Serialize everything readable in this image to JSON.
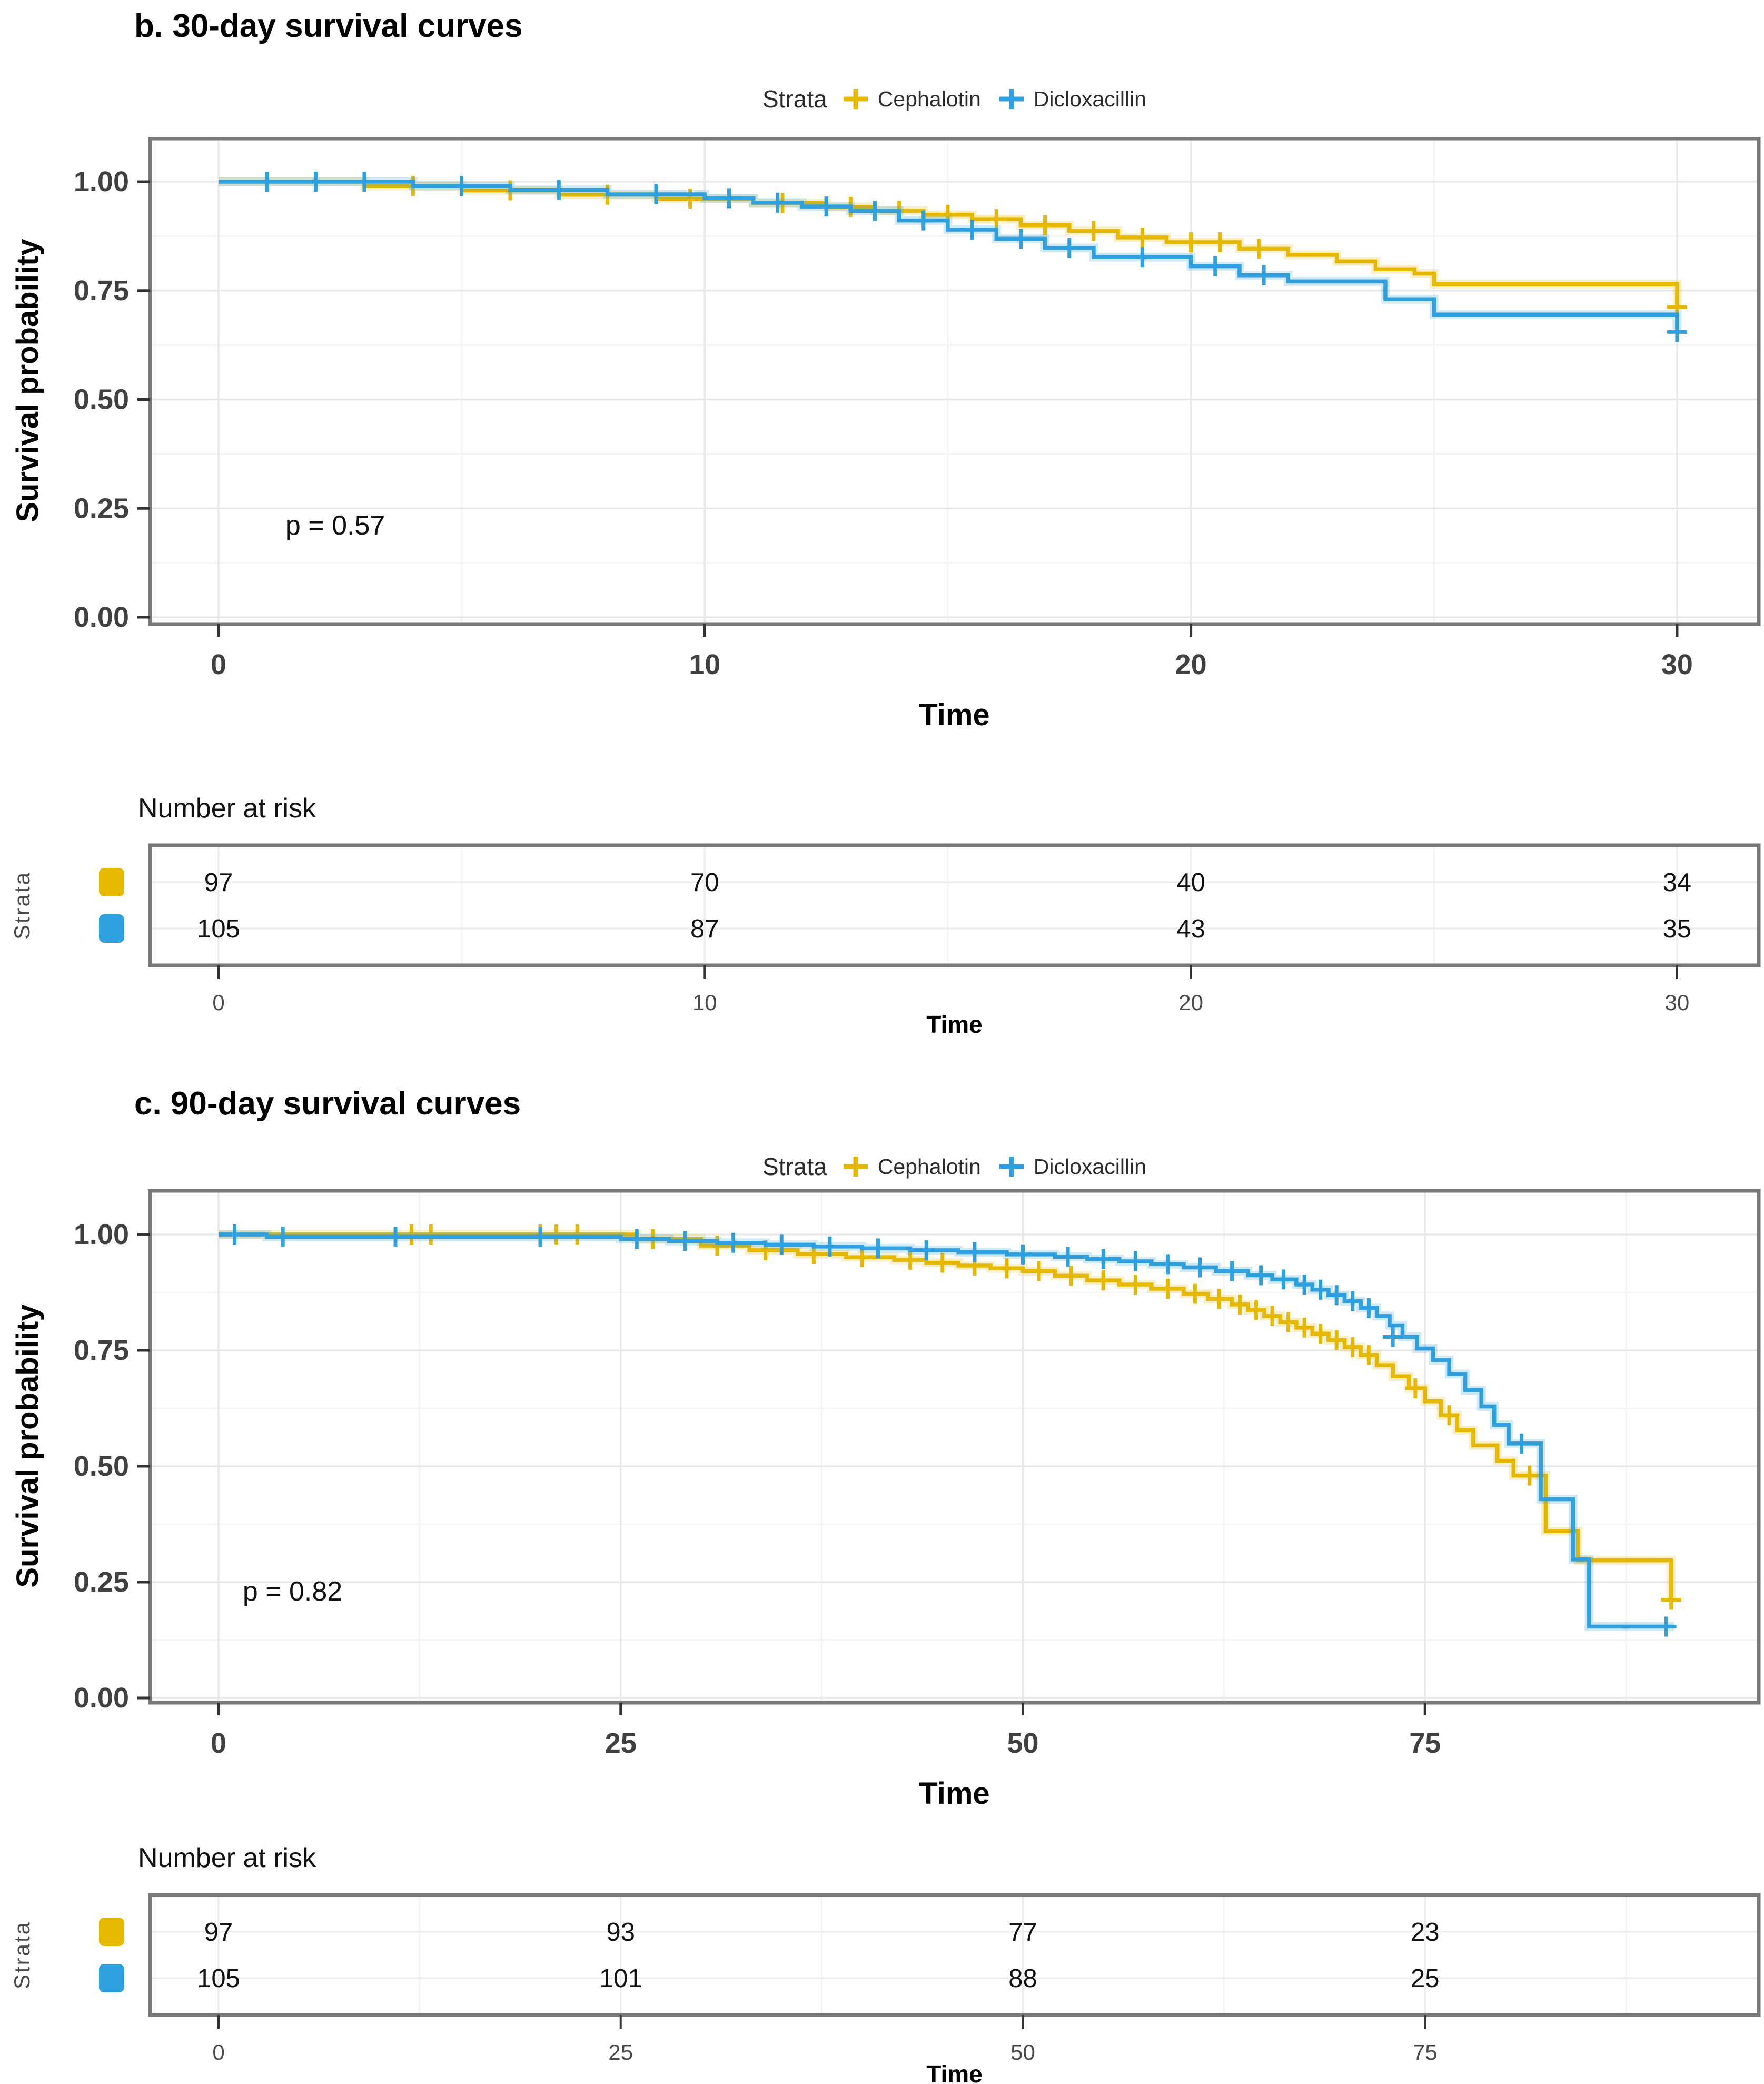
{
  "colors": {
    "cephalotin": "#E7B800",
    "dicloxacillin": "#2E9FDF",
    "panel_border": "#787878",
    "grid_major": "#e8e8e8",
    "grid_minor": "#f4f4f4",
    "tick": "#333333",
    "tick_label": "#404040",
    "risk_grid": "#ededed",
    "text": "#111111",
    "muted_label": "#4a4a4a"
  },
  "chart_data": [
    {
      "panel_id": "b",
      "type": "line",
      "step": "hv",
      "title": "b. 30-day survival curves",
      "xlabel": "Time",
      "ylabel": "Survival probability",
      "legend_title": "Strata",
      "legend_position": "top",
      "grid": true,
      "xlim": [
        0,
        31.7
      ],
      "ylim": [
        0,
        1
      ],
      "x_ticks": [
        0,
        10,
        20,
        30
      ],
      "x_minor_ticks": [
        5,
        15,
        25
      ],
      "y_ticks": [
        0,
        0.25,
        0.5,
        0.75,
        1
      ],
      "y_tick_labels": [
        "0.00",
        "0.25",
        "0.50",
        "0.75",
        "1.00"
      ],
      "y_minor_ticks": [
        0.125,
        0.375,
        0.625,
        0.875
      ],
      "p_value": {
        "text": "p = 0.57",
        "x": 2.4,
        "y": 0.19
      },
      "series": [
        {
          "name": "Cephalotin",
          "color_key": "cephalotin",
          "points": [
            [
              0,
              1
            ],
            [
              3,
              0.99
            ],
            [
              5,
              0.98
            ],
            [
              7,
              0.97
            ],
            [
              9,
              0.961
            ],
            [
              11,
              0.951
            ],
            [
              12.5,
              0.942
            ],
            [
              13.5,
              0.933
            ],
            [
              14.5,
              0.924
            ],
            [
              15.5,
              0.914
            ],
            [
              16.5,
              0.9
            ],
            [
              17.5,
              0.887
            ],
            [
              18.5,
              0.872
            ],
            [
              19.5,
              0.861
            ],
            [
              21,
              0.846
            ],
            [
              22,
              0.832
            ],
            [
              23,
              0.817
            ],
            [
              23.8,
              0.799
            ],
            [
              24.6,
              0.789
            ],
            [
              25,
              0.765
            ],
            [
              30,
              0.712
            ]
          ],
          "censor_marks": [
            [
              4,
              0.99
            ],
            [
              6,
              0.98
            ],
            [
              8,
              0.97
            ],
            [
              9.7,
              0.961
            ],
            [
              11.6,
              0.951
            ],
            [
              13,
              0.942
            ],
            [
              14,
              0.933
            ],
            [
              15,
              0.924
            ],
            [
              16,
              0.914
            ],
            [
              17,
              0.9
            ],
            [
              18,
              0.887
            ],
            [
              19,
              0.872
            ],
            [
              20,
              0.861
            ],
            [
              20.6,
              0.861
            ],
            [
              21.4,
              0.846
            ],
            [
              30,
              0.712
            ]
          ]
        },
        {
          "name": "Dicloxacillin",
          "color_key": "dicloxacillin",
          "points": [
            [
              0,
              1
            ],
            [
              4,
              0.99
            ],
            [
              6,
              0.981
            ],
            [
              8,
              0.971
            ],
            [
              10,
              0.962
            ],
            [
              11,
              0.952
            ],
            [
              12,
              0.943
            ],
            [
              13,
              0.933
            ],
            [
              14,
              0.911
            ],
            [
              15,
              0.89
            ],
            [
              16,
              0.869
            ],
            [
              17,
              0.848
            ],
            [
              18,
              0.827
            ],
            [
              20,
              0.806
            ],
            [
              21,
              0.785
            ],
            [
              22,
              0.771
            ],
            [
              24,
              0.73
            ],
            [
              25,
              0.695
            ],
            [
              30,
              0.655
            ]
          ],
          "censor_marks": [
            [
              1,
              1
            ],
            [
              2,
              1
            ],
            [
              3,
              1
            ],
            [
              5,
              0.99
            ],
            [
              7,
              0.981
            ],
            [
              9,
              0.971
            ],
            [
              10.5,
              0.962
            ],
            [
              11.5,
              0.952
            ],
            [
              12.5,
              0.943
            ],
            [
              13.5,
              0.933
            ],
            [
              14.5,
              0.911
            ],
            [
              15.5,
              0.89
            ],
            [
              16.5,
              0.869
            ],
            [
              17.5,
              0.848
            ],
            [
              19,
              0.827
            ],
            [
              20.5,
              0.806
            ],
            [
              21.5,
              0.785
            ],
            [
              30,
              0.655
            ]
          ]
        }
      ],
      "risk_table": {
        "header": "Number at risk",
        "axis_label": "Strata",
        "time_label": "Time",
        "times": [
          0,
          10,
          20,
          30
        ],
        "rows": [
          {
            "name": "Cephalotin",
            "color_key": "cephalotin",
            "counts": [
              97,
              70,
              40,
              34
            ]
          },
          {
            "name": "Dicloxacillin",
            "color_key": "dicloxacillin",
            "counts": [
              105,
              87,
              43,
              35
            ]
          }
        ]
      }
    },
    {
      "panel_id": "c",
      "type": "line",
      "step": "hv",
      "title": "c. 90-day survival curves",
      "xlabel": "Time",
      "ylabel": "Survival probability",
      "legend_title": "Strata",
      "legend_position": "top",
      "grid": true,
      "xlim": [
        0,
        95.7
      ],
      "ylim": [
        0,
        1
      ],
      "x_ticks": [
        0,
        25,
        50,
        75
      ],
      "x_minor_ticks": [
        12.5,
        37.5,
        62.5,
        87.5
      ],
      "y_ticks": [
        0,
        0.25,
        0.5,
        0.75,
        1
      ],
      "y_tick_labels": [
        "0.00",
        "0.25",
        "0.50",
        "0.75",
        "1.00"
      ],
      "y_minor_ticks": [
        0.125,
        0.375,
        0.625,
        0.875
      ],
      "p_value": {
        "text": "p = 0.82",
        "x": 4.6,
        "y": 0.21
      },
      "series": [
        {
          "name": "Cephalotin",
          "color_key": "cephalotin",
          "points": [
            [
              0,
              1
            ],
            [
              26,
              0.99
            ],
            [
              30,
              0.976
            ],
            [
              33,
              0.966
            ],
            [
              36,
              0.958
            ],
            [
              39,
              0.951
            ],
            [
              42,
              0.945
            ],
            [
              44,
              0.939
            ],
            [
              46,
              0.933
            ],
            [
              48,
              0.927
            ],
            [
              50,
              0.921
            ],
            [
              52,
              0.911
            ],
            [
              54,
              0.901
            ],
            [
              56,
              0.892
            ],
            [
              58,
              0.883
            ],
            [
              60,
              0.872
            ],
            [
              61.5,
              0.861
            ],
            [
              63,
              0.849
            ],
            [
              64,
              0.837
            ],
            [
              65,
              0.824
            ],
            [
              66,
              0.811
            ],
            [
              67,
              0.799
            ],
            [
              68,
              0.786
            ],
            [
              69,
              0.772
            ],
            [
              70,
              0.757
            ],
            [
              71,
              0.74
            ],
            [
              72,
              0.718
            ],
            [
              73,
              0.694
            ],
            [
              74,
              0.668
            ],
            [
              75,
              0.64
            ],
            [
              76,
              0.61
            ],
            [
              77,
              0.578
            ],
            [
              78,
              0.545
            ],
            [
              79.5,
              0.512
            ],
            [
              80.5,
              0.48
            ],
            [
              82.5,
              0.36
            ],
            [
              84.5,
              0.297
            ],
            [
              90.3,
              0.212
            ]
          ],
          "censor_marks": [
            [
              12,
              1
            ],
            [
              13.2,
              1
            ],
            [
              20,
              1
            ],
            [
              21,
              1
            ],
            [
              22.3,
              1
            ],
            [
              27,
              0.99
            ],
            [
              31,
              0.976
            ],
            [
              34,
              0.966
            ],
            [
              37,
              0.958
            ],
            [
              40,
              0.951
            ],
            [
              43,
              0.945
            ],
            [
              45,
              0.939
            ],
            [
              47,
              0.933
            ],
            [
              49,
              0.927
            ],
            [
              51,
              0.921
            ],
            [
              53,
              0.911
            ],
            [
              55,
              0.901
            ],
            [
              57,
              0.892
            ],
            [
              59,
              0.883
            ],
            [
              60.7,
              0.872
            ],
            [
              62.2,
              0.861
            ],
            [
              63.5,
              0.849
            ],
            [
              64.5,
              0.837
            ],
            [
              65.5,
              0.824
            ],
            [
              66.5,
              0.811
            ],
            [
              67.5,
              0.799
            ],
            [
              68.5,
              0.786
            ],
            [
              69.5,
              0.772
            ],
            [
              70.5,
              0.757
            ],
            [
              71.5,
              0.74
            ],
            [
              74.4,
              0.668
            ],
            [
              76.5,
              0.61
            ],
            [
              81.5,
              0.48
            ],
            [
              90.3,
              0.212
            ]
          ]
        },
        {
          "name": "Dicloxacillin",
          "color_key": "dicloxacillin",
          "points": [
            [
              0,
              1
            ],
            [
              3,
              0.995
            ],
            [
              25,
              0.99
            ],
            [
              28,
              0.986
            ],
            [
              31,
              0.982
            ],
            [
              34,
              0.978
            ],
            [
              37,
              0.974
            ],
            [
              40,
              0.97
            ],
            [
              43,
              0.966
            ],
            [
              46,
              0.962
            ],
            [
              49,
              0.957
            ],
            [
              52,
              0.952
            ],
            [
              54,
              0.947
            ],
            [
              56,
              0.942
            ],
            [
              58,
              0.936
            ],
            [
              60,
              0.929
            ],
            [
              62,
              0.921
            ],
            [
              64,
              0.912
            ],
            [
              65.5,
              0.903
            ],
            [
              67,
              0.892
            ],
            [
              68,
              0.881
            ],
            [
              69,
              0.869
            ],
            [
              70,
              0.856
            ],
            [
              71,
              0.841
            ],
            [
              72,
              0.824
            ],
            [
              72.8,
              0.804
            ],
            [
              73.6,
              0.779
            ],
            [
              74.5,
              0.754
            ],
            [
              75.5,
              0.729
            ],
            [
              76.5,
              0.699
            ],
            [
              77.5,
              0.664
            ],
            [
              78.5,
              0.629
            ],
            [
              79.3,
              0.589
            ],
            [
              80.2,
              0.549
            ],
            [
              82.2,
              0.429
            ],
            [
              84.2,
              0.299
            ],
            [
              85.2,
              0.154
            ],
            [
              90.5,
              0.154
            ]
          ],
          "censor_marks": [
            [
              1,
              1
            ],
            [
              4,
              0.995
            ],
            [
              11,
              0.995
            ],
            [
              20,
              0.995
            ],
            [
              26,
              0.99
            ],
            [
              29,
              0.986
            ],
            [
              32,
              0.982
            ],
            [
              35,
              0.978
            ],
            [
              38,
              0.974
            ],
            [
              41,
              0.97
            ],
            [
              44,
              0.966
            ],
            [
              47,
              0.962
            ],
            [
              50,
              0.957
            ],
            [
              52.8,
              0.952
            ],
            [
              55,
              0.947
            ],
            [
              57,
              0.942
            ],
            [
              59,
              0.936
            ],
            [
              61,
              0.929
            ],
            [
              63,
              0.921
            ],
            [
              64.8,
              0.912
            ],
            [
              66.2,
              0.903
            ],
            [
              67.5,
              0.892
            ],
            [
              68.5,
              0.881
            ],
            [
              69.5,
              0.869
            ],
            [
              70.5,
              0.856
            ],
            [
              71.5,
              0.841
            ],
            [
              73,
              0.779
            ],
            [
              81,
              0.549
            ],
            [
              90,
              0.154
            ]
          ]
        }
      ],
      "risk_table": {
        "header": "Number at risk",
        "axis_label": "Strata",
        "time_label": "Time",
        "times": [
          0,
          25,
          50,
          75
        ],
        "rows": [
          {
            "name": "Cephalotin",
            "color_key": "cephalotin",
            "counts": [
              97,
              93,
              77,
              23
            ]
          },
          {
            "name": "Dicloxacillin",
            "color_key": "dicloxacillin",
            "counts": [
              105,
              101,
              88,
              25
            ]
          }
        ]
      }
    }
  ]
}
